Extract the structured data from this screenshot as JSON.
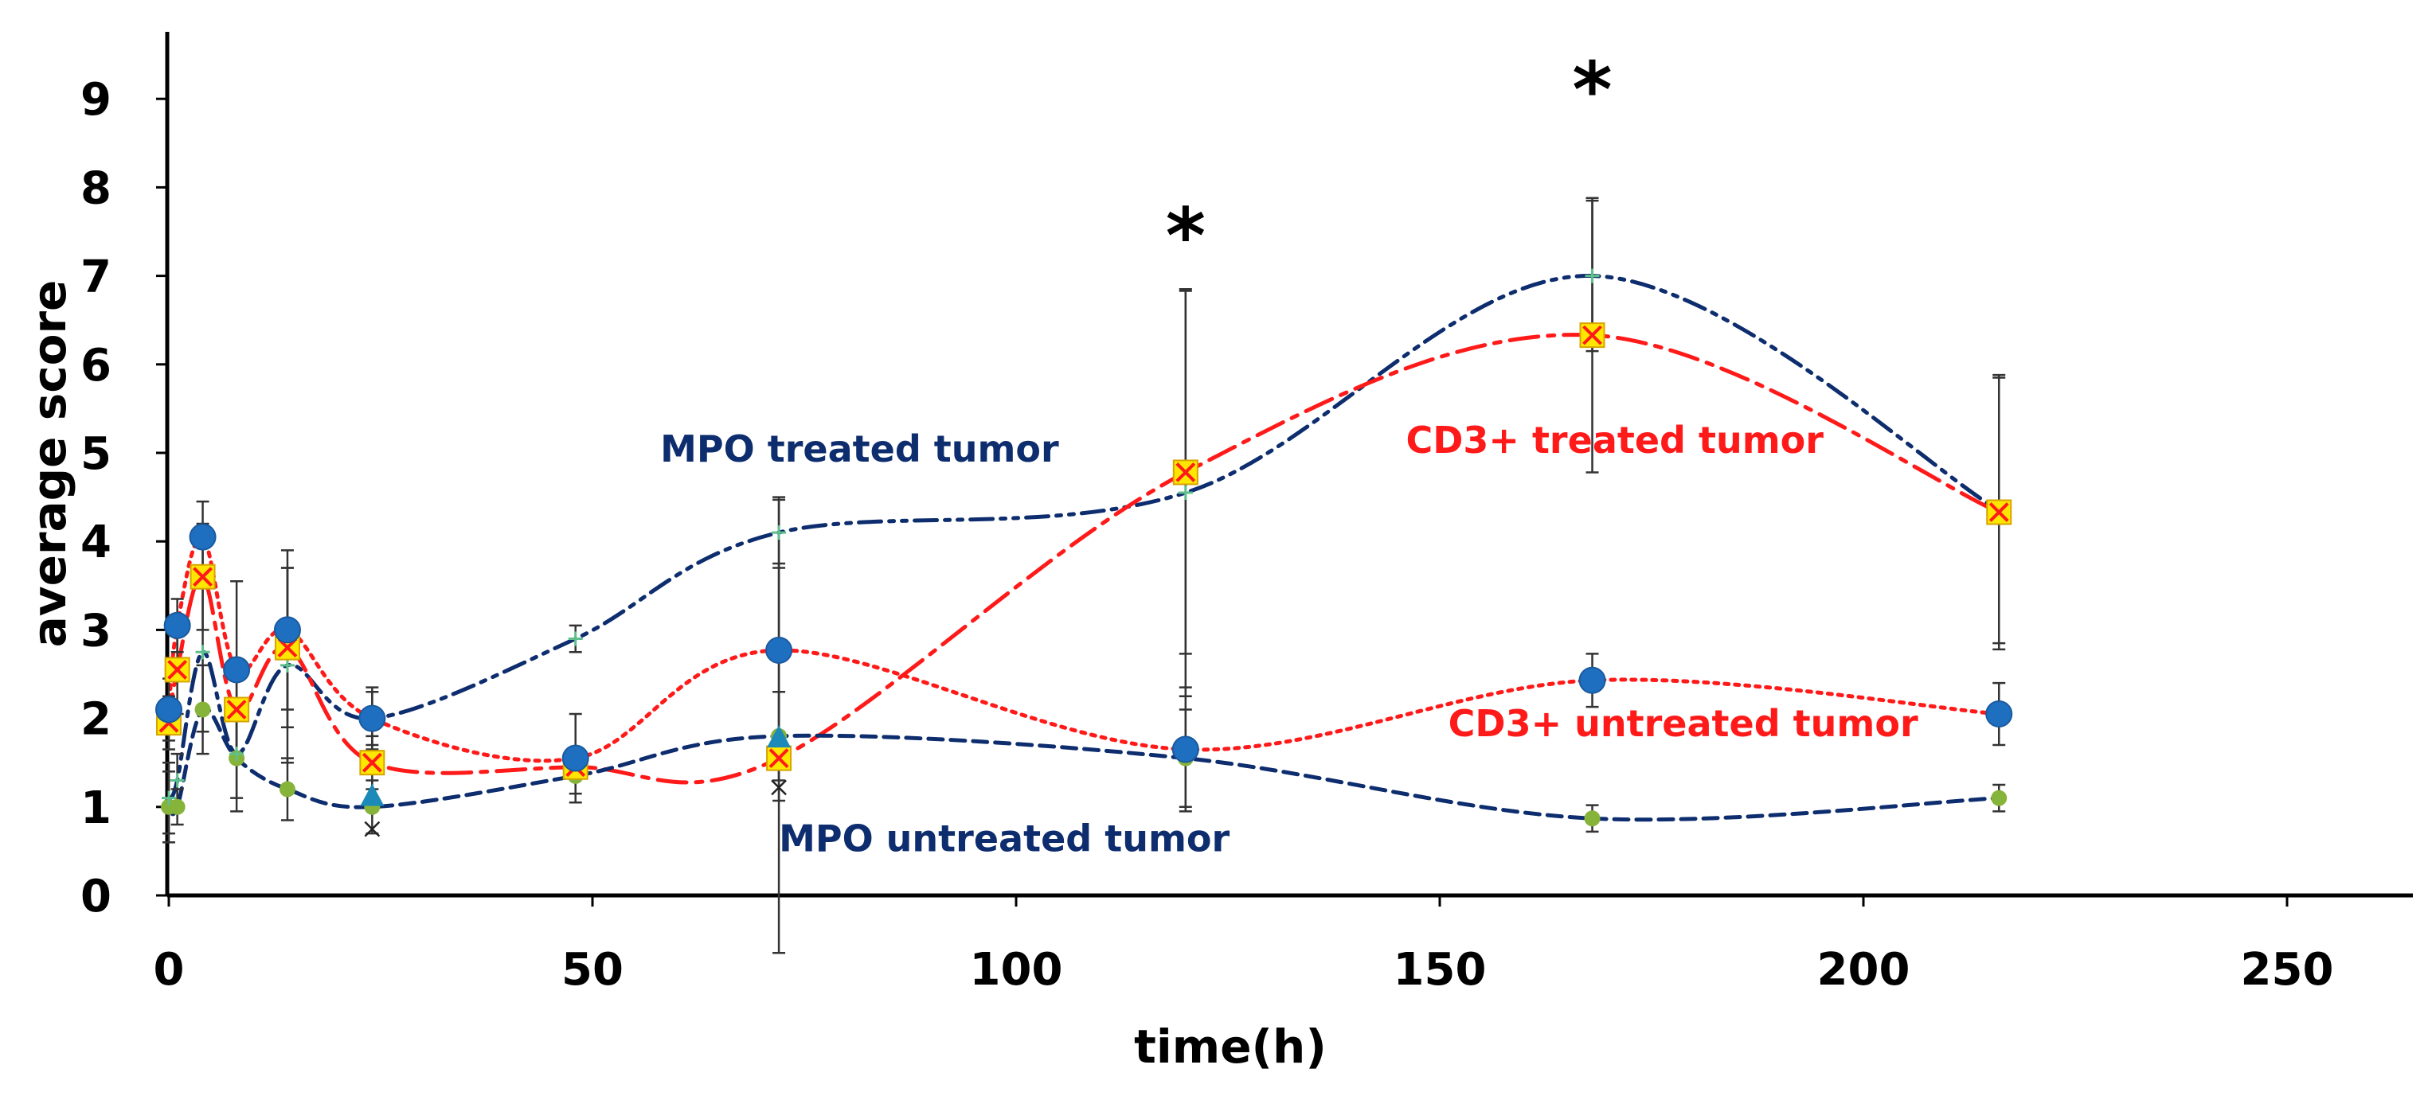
{
  "chart_data": {
    "type": "line",
    "title": "",
    "xlabel": "time(h)",
    "ylabel": "average score",
    "xlim": [
      0,
      265
    ],
    "ylim": [
      0,
      9.9
    ],
    "xticks": [
      0,
      50,
      100,
      150,
      200,
      250
    ],
    "yticks": [
      0,
      1,
      2,
      3,
      4,
      5,
      6,
      7,
      8,
      9
    ],
    "grid": false,
    "colors": {
      "mpo_treated": "#0d2d6e",
      "cd3_treated": "#ff1a1a",
      "cd3_untreated": "#ff1a1a",
      "mpo_untreated": "#0d2d6e",
      "marker_blue": "#1f6fc0",
      "marker_yellow": "#ffe600",
      "marker_green": "#86b33a",
      "marker_teal": "#1b8ab8",
      "error_bar": "#333333"
    },
    "series": [
      {
        "name": "MPO treated tumor",
        "label_text": "MPO treated tumor",
        "line_style": "dash-dot-dot",
        "line_color": "#0d2d6e",
        "marker": "plus",
        "x": [
          0,
          1,
          4,
          8,
          14,
          24,
          48,
          72,
          120,
          168,
          216
        ],
        "y": [
          1.1,
          1.3,
          2.75,
          1.6,
          2.6,
          2.0,
          2.9,
          4.1,
          4.55,
          7.0,
          4.35
        ],
        "err": [
          0.4,
          0.3,
          0.9,
          0.5,
          1.1,
          0.3,
          0.15,
          0.4,
          2.3,
          0.85,
          1.5
        ]
      },
      {
        "name": "CD3+ treated tumor",
        "label_text": "CD3+ treated tumor",
        "line_style": "dash-dot",
        "line_color": "#ff1a1a",
        "marker": "yellow-x",
        "x": [
          0,
          1,
          4,
          8,
          14,
          24,
          48,
          72,
          120,
          168,
          216
        ],
        "y": [
          1.95,
          2.55,
          3.6,
          2.1,
          2.8,
          1.5,
          1.45,
          1.55,
          4.78,
          6.33,
          4.33
        ],
        "err": [
          0.3,
          0.5,
          0.6,
          0.5,
          0.9,
          0.3,
          0.1,
          2.2,
          2.05,
          1.55,
          1.55
        ]
      },
      {
        "name": "CD3+ untreated tumor",
        "label_text": "CD3+ untreated tumor",
        "line_style": "dotted",
        "line_color": "#ff1a1a",
        "marker": "blue-circle",
        "x": [
          0,
          1,
          4,
          8,
          14,
          24,
          48,
          72,
          120,
          168,
          216
        ],
        "y": [
          2.1,
          3.05,
          4.05,
          2.55,
          3.0,
          2.0,
          1.55,
          2.77,
          1.65,
          2.43,
          2.05
        ],
        "err": [
          0.35,
          0.3,
          0.4,
          1.0,
          0.9,
          0.35,
          0.5,
          1.7,
          0.7,
          0.3,
          0.35
        ]
      },
      {
        "name": "MPO untreated tumor",
        "label_text": "MPO untreated tumor",
        "line_style": "dashed",
        "line_color": "#0d2d6e",
        "marker": "green-dot",
        "x": [
          0,
          1,
          4,
          8,
          14,
          24,
          48,
          72,
          120,
          168,
          216
        ],
        "y": [
          1.0,
          1.0,
          2.1,
          1.55,
          1.2,
          1.0,
          1.35,
          1.8,
          1.55,
          0.87,
          1.1
        ],
        "err": [
          0.4,
          0.2,
          0.5,
          0.6,
          0.35,
          0.3,
          0.2,
          0.5,
          0.55,
          0.15,
          0.15
        ]
      }
    ],
    "extra_markers": [
      {
        "name": "blue-triangle",
        "x": 24,
        "y": 1.12
      },
      {
        "name": "blue-triangle",
        "x": 72,
        "y": 1.78
      },
      {
        "name": "black-x",
        "x": 24,
        "y": 0.75
      },
      {
        "name": "black-x",
        "x": 72,
        "y": 1.22
      }
    ],
    "annotations": [
      {
        "text": "*",
        "x": 120,
        "y": 7.15
      },
      {
        "text": "*",
        "x": 168,
        "y": 8.8
      }
    ],
    "series_labels": [
      {
        "series": "MPO treated tumor",
        "text": "MPO treated tumor",
        "x": 58,
        "y": 4.9,
        "color": "#0d2d6e"
      },
      {
        "series": "CD3+ treated tumor",
        "text": "CD3+ treated tumor",
        "x": 146,
        "y": 5.0,
        "color": "#ff1a1a"
      },
      {
        "series": "CD3+ untreated tumor",
        "text": "CD3+ untreated tumor",
        "x": 151,
        "y": 1.8,
        "color": "#ff1a1a"
      },
      {
        "series": "MPO untreated tumor",
        "text": "MPO untreated tumor",
        "x": 72,
        "y": 0.5,
        "color": "#0d2d6e"
      }
    ]
  }
}
